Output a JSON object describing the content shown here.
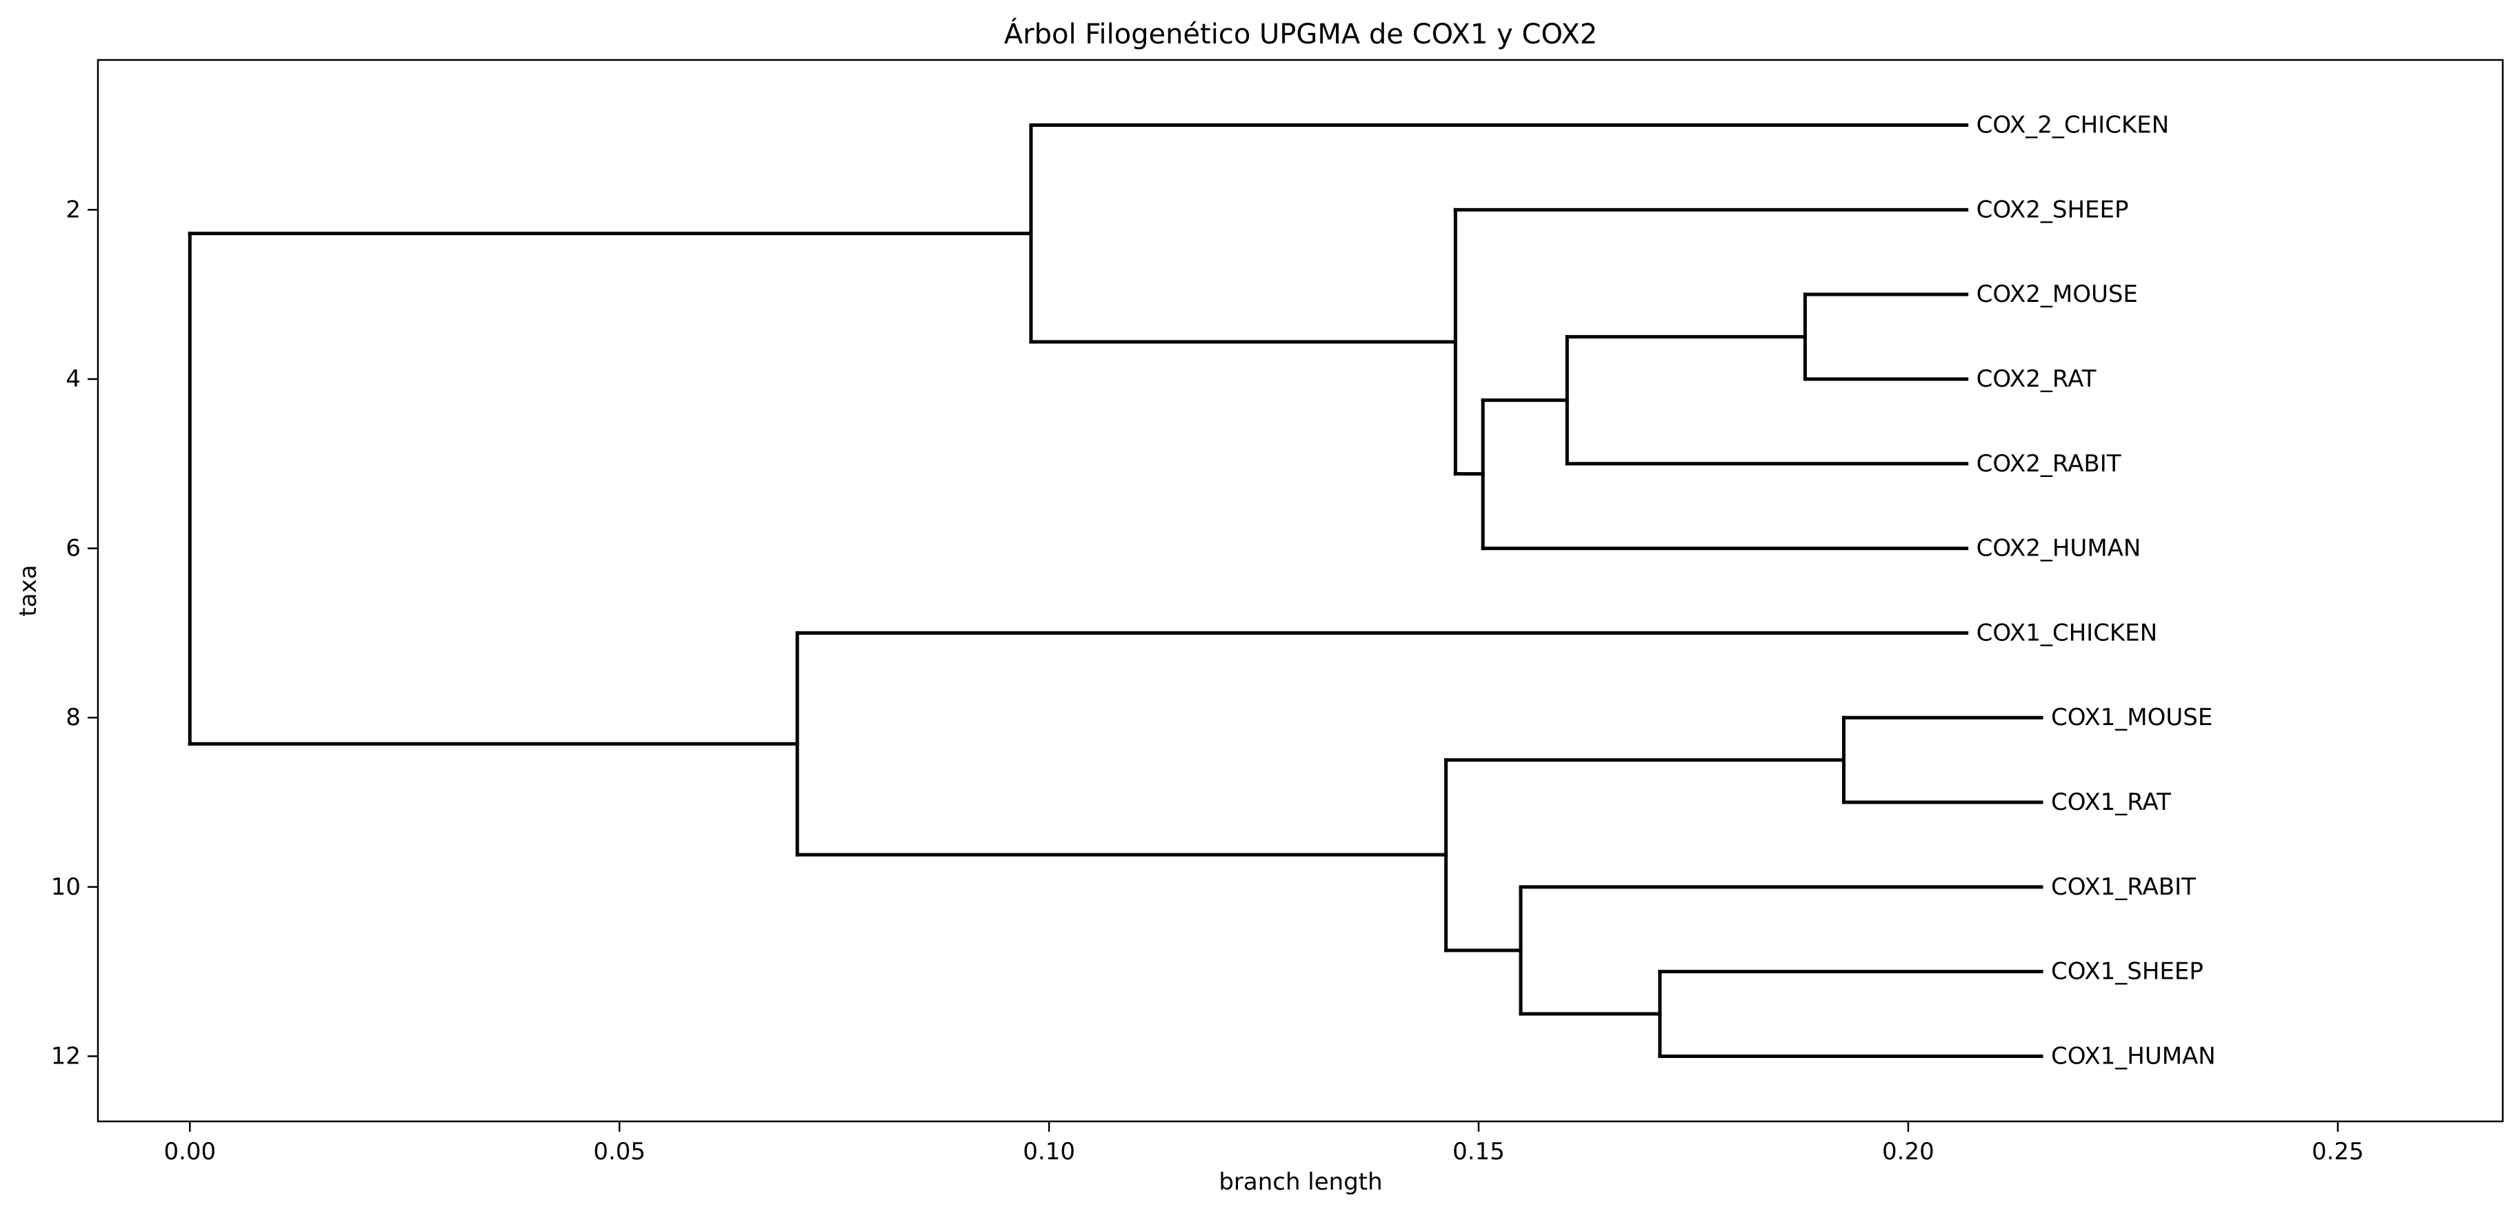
{
  "chart_data": {
    "type": "tree",
    "title": "Árbol Filogenético UPGMA de COX1 y COX2",
    "xlabel": "branch length",
    "ylabel": "taxa",
    "xlim": [
      -0.0107,
      0.2692
    ],
    "ylim": [
      12.77,
      0.23
    ],
    "xticks": [
      {
        "value": 0.0,
        "label": "0.00"
      },
      {
        "value": 0.05,
        "label": "0.05"
      },
      {
        "value": 0.1,
        "label": "0.10"
      },
      {
        "value": 0.15,
        "label": "0.15"
      },
      {
        "value": 0.2,
        "label": "0.20"
      },
      {
        "value": 0.25,
        "label": "0.25"
      }
    ],
    "yticks": [
      {
        "value": 2,
        "label": "2"
      },
      {
        "value": 4,
        "label": "4"
      },
      {
        "value": 6,
        "label": "6"
      },
      {
        "value": 8,
        "label": "8"
      },
      {
        "value": 10,
        "label": "10"
      },
      {
        "value": 12,
        "label": "12"
      }
    ],
    "leaves": [
      {
        "name": "COX_2_CHICKEN",
        "x": 0.2068,
        "y": 1
      },
      {
        "name": "COX2_SHEEP",
        "x": 0.2068,
        "y": 2
      },
      {
        "name": "COX2_MOUSE",
        "x": 0.2068,
        "y": 3
      },
      {
        "name": "COX2_RAT",
        "x": 0.2068,
        "y": 4
      },
      {
        "name": "COX2_RABIT",
        "x": 0.2068,
        "y": 5
      },
      {
        "name": "COX2_HUMAN",
        "x": 0.2068,
        "y": 6
      },
      {
        "name": "COX1_CHICKEN",
        "x": 0.2068,
        "y": 7
      },
      {
        "name": "COX1_MOUSE",
        "x": 0.2155,
        "y": 8
      },
      {
        "name": "COX1_RAT",
        "x": 0.2155,
        "y": 9
      },
      {
        "name": "COX1_RABIT",
        "x": 0.2155,
        "y": 10
      },
      {
        "name": "COX1_SHEEP",
        "x": 0.2155,
        "y": 11
      },
      {
        "name": "COX1_HUMAN",
        "x": 0.2155,
        "y": 12
      }
    ],
    "clades": [
      {
        "id": "root",
        "x": 0.0,
        "y": 5.3,
        "parent": null,
        "children": [
          "cox2_all",
          "cox1_all"
        ]
      },
      {
        "id": "cox2_all",
        "x": 0.0979,
        "y": 2.28,
        "parent": "root",
        "children": [
          "leaf:COX_2_CHICKEN",
          "cox2_mam"
        ]
      },
      {
        "id": "cox2_mam",
        "x": 0.1473,
        "y": 3.56,
        "parent": "cox2_all",
        "children": [
          "leaf:COX2_SHEEP",
          "cox2_b"
        ]
      },
      {
        "id": "cox2_b",
        "x": 0.1505,
        "y": 5.12,
        "parent": "cox2_mam",
        "children": [
          "cox2_c",
          "leaf:COX2_HUMAN"
        ]
      },
      {
        "id": "cox2_c",
        "x": 0.1603,
        "y": 4.25,
        "parent": "cox2_b",
        "children": [
          "cox2_mr",
          "leaf:COX2_RABIT"
        ]
      },
      {
        "id": "cox2_mr",
        "x": 0.188,
        "y": 3.5,
        "parent": "cox2_c",
        "children": [
          "leaf:COX2_MOUSE",
          "leaf:COX2_RAT"
        ]
      },
      {
        "id": "cox1_all",
        "x": 0.0707,
        "y": 8.31,
        "parent": "root",
        "children": [
          "leaf:COX1_CHICKEN",
          "cox1_mam"
        ]
      },
      {
        "id": "cox1_mam",
        "x": 0.1462,
        "y": 9.62,
        "parent": "cox1_all",
        "children": [
          "cox1_mr",
          "cox1_b"
        ]
      },
      {
        "id": "cox1_mr",
        "x": 0.1925,
        "y": 8.5,
        "parent": "cox1_mam",
        "children": [
          "leaf:COX1_MOUSE",
          "leaf:COX1_RAT"
        ]
      },
      {
        "id": "cox1_b",
        "x": 0.1549,
        "y": 10.75,
        "parent": "cox1_mam",
        "children": [
          "leaf:COX1_RABIT",
          "cox1_sh"
        ]
      },
      {
        "id": "cox1_sh",
        "x": 0.1711,
        "y": 11.5,
        "parent": "cox1_b",
        "children": [
          "leaf:COX1_SHEEP",
          "leaf:COX1_HUMAN"
        ]
      }
    ]
  }
}
